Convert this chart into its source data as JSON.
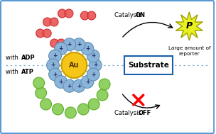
{
  "background_color": "#ffffff",
  "border_color": "#5b9bd5",
  "fig_width": 3.04,
  "fig_height": 1.89,
  "au_color": "#f5c518",
  "au_edge_color": "#c8a000",
  "au_label": "Au",
  "positive_circle_color": "#8ab4d8",
  "positive_circle_edge": "#5a8ab0",
  "red_circle_color": "#e85555",
  "red_circle_edge": "#cc2222",
  "green_circle_color": "#88cc55",
  "green_circle_edge": "#55aa22",
  "substrate_label": "Substrate",
  "reporter_star_color": "#e8f020",
  "reporter_star_edge": "#a0a000",
  "reporter_label": "P",
  "large_amount_text": "Large amount of\nreporter",
  "catalysis_on_text": "Catalysis ",
  "catalysis_on_bold": "ON",
  "catalysis_off_text": "Catalysis ",
  "catalysis_off_bold": "OFF"
}
